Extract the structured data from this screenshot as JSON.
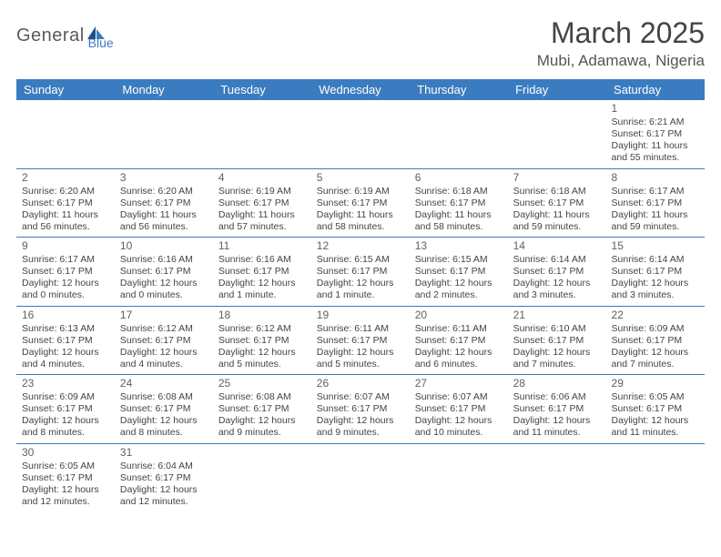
{
  "logo": {
    "text_general": "General",
    "text_blue": "Blue"
  },
  "title": {
    "month_year": "March 2025",
    "location": "Mubi, Adamawa, Nigeria"
  },
  "colors": {
    "header_bg": "#3b7bbf",
    "header_text": "#ffffff",
    "cell_border": "#3b7bbf",
    "empty_bg": "#f0f0f0",
    "body_text": "#444444",
    "title_text": "#444444",
    "location_text": "#555555",
    "logo_gray": "#5a5a5a",
    "logo_blue": "#3b7bbf"
  },
  "day_headers": [
    "Sunday",
    "Monday",
    "Tuesday",
    "Wednesday",
    "Thursday",
    "Friday",
    "Saturday"
  ],
  "weeks": [
    [
      null,
      null,
      null,
      null,
      null,
      null,
      {
        "d": "1",
        "sr": "Sunrise: 6:21 AM",
        "ss": "Sunset: 6:17 PM",
        "dl1": "Daylight: 11 hours",
        "dl2": "and 55 minutes."
      }
    ],
    [
      {
        "d": "2",
        "sr": "Sunrise: 6:20 AM",
        "ss": "Sunset: 6:17 PM",
        "dl1": "Daylight: 11 hours",
        "dl2": "and 56 minutes."
      },
      {
        "d": "3",
        "sr": "Sunrise: 6:20 AM",
        "ss": "Sunset: 6:17 PM",
        "dl1": "Daylight: 11 hours",
        "dl2": "and 56 minutes."
      },
      {
        "d": "4",
        "sr": "Sunrise: 6:19 AM",
        "ss": "Sunset: 6:17 PM",
        "dl1": "Daylight: 11 hours",
        "dl2": "and 57 minutes."
      },
      {
        "d": "5",
        "sr": "Sunrise: 6:19 AM",
        "ss": "Sunset: 6:17 PM",
        "dl1": "Daylight: 11 hours",
        "dl2": "and 58 minutes."
      },
      {
        "d": "6",
        "sr": "Sunrise: 6:18 AM",
        "ss": "Sunset: 6:17 PM",
        "dl1": "Daylight: 11 hours",
        "dl2": "and 58 minutes."
      },
      {
        "d": "7",
        "sr": "Sunrise: 6:18 AM",
        "ss": "Sunset: 6:17 PM",
        "dl1": "Daylight: 11 hours",
        "dl2": "and 59 minutes."
      },
      {
        "d": "8",
        "sr": "Sunrise: 6:17 AM",
        "ss": "Sunset: 6:17 PM",
        "dl1": "Daylight: 11 hours",
        "dl2": "and 59 minutes."
      }
    ],
    [
      {
        "d": "9",
        "sr": "Sunrise: 6:17 AM",
        "ss": "Sunset: 6:17 PM",
        "dl1": "Daylight: 12 hours",
        "dl2": "and 0 minutes."
      },
      {
        "d": "10",
        "sr": "Sunrise: 6:16 AM",
        "ss": "Sunset: 6:17 PM",
        "dl1": "Daylight: 12 hours",
        "dl2": "and 0 minutes."
      },
      {
        "d": "11",
        "sr": "Sunrise: 6:16 AM",
        "ss": "Sunset: 6:17 PM",
        "dl1": "Daylight: 12 hours",
        "dl2": "and 1 minute."
      },
      {
        "d": "12",
        "sr": "Sunrise: 6:15 AM",
        "ss": "Sunset: 6:17 PM",
        "dl1": "Daylight: 12 hours",
        "dl2": "and 1 minute."
      },
      {
        "d": "13",
        "sr": "Sunrise: 6:15 AM",
        "ss": "Sunset: 6:17 PM",
        "dl1": "Daylight: 12 hours",
        "dl2": "and 2 minutes."
      },
      {
        "d": "14",
        "sr": "Sunrise: 6:14 AM",
        "ss": "Sunset: 6:17 PM",
        "dl1": "Daylight: 12 hours",
        "dl2": "and 3 minutes."
      },
      {
        "d": "15",
        "sr": "Sunrise: 6:14 AM",
        "ss": "Sunset: 6:17 PM",
        "dl1": "Daylight: 12 hours",
        "dl2": "and 3 minutes."
      }
    ],
    [
      {
        "d": "16",
        "sr": "Sunrise: 6:13 AM",
        "ss": "Sunset: 6:17 PM",
        "dl1": "Daylight: 12 hours",
        "dl2": "and 4 minutes."
      },
      {
        "d": "17",
        "sr": "Sunrise: 6:12 AM",
        "ss": "Sunset: 6:17 PM",
        "dl1": "Daylight: 12 hours",
        "dl2": "and 4 minutes."
      },
      {
        "d": "18",
        "sr": "Sunrise: 6:12 AM",
        "ss": "Sunset: 6:17 PM",
        "dl1": "Daylight: 12 hours",
        "dl2": "and 5 minutes."
      },
      {
        "d": "19",
        "sr": "Sunrise: 6:11 AM",
        "ss": "Sunset: 6:17 PM",
        "dl1": "Daylight: 12 hours",
        "dl2": "and 5 minutes."
      },
      {
        "d": "20",
        "sr": "Sunrise: 6:11 AM",
        "ss": "Sunset: 6:17 PM",
        "dl1": "Daylight: 12 hours",
        "dl2": "and 6 minutes."
      },
      {
        "d": "21",
        "sr": "Sunrise: 6:10 AM",
        "ss": "Sunset: 6:17 PM",
        "dl1": "Daylight: 12 hours",
        "dl2": "and 7 minutes."
      },
      {
        "d": "22",
        "sr": "Sunrise: 6:09 AM",
        "ss": "Sunset: 6:17 PM",
        "dl1": "Daylight: 12 hours",
        "dl2": "and 7 minutes."
      }
    ],
    [
      {
        "d": "23",
        "sr": "Sunrise: 6:09 AM",
        "ss": "Sunset: 6:17 PM",
        "dl1": "Daylight: 12 hours",
        "dl2": "and 8 minutes."
      },
      {
        "d": "24",
        "sr": "Sunrise: 6:08 AM",
        "ss": "Sunset: 6:17 PM",
        "dl1": "Daylight: 12 hours",
        "dl2": "and 8 minutes."
      },
      {
        "d": "25",
        "sr": "Sunrise: 6:08 AM",
        "ss": "Sunset: 6:17 PM",
        "dl1": "Daylight: 12 hours",
        "dl2": "and 9 minutes."
      },
      {
        "d": "26",
        "sr": "Sunrise: 6:07 AM",
        "ss": "Sunset: 6:17 PM",
        "dl1": "Daylight: 12 hours",
        "dl2": "and 9 minutes."
      },
      {
        "d": "27",
        "sr": "Sunrise: 6:07 AM",
        "ss": "Sunset: 6:17 PM",
        "dl1": "Daylight: 12 hours",
        "dl2": "and 10 minutes."
      },
      {
        "d": "28",
        "sr": "Sunrise: 6:06 AM",
        "ss": "Sunset: 6:17 PM",
        "dl1": "Daylight: 12 hours",
        "dl2": "and 11 minutes."
      },
      {
        "d": "29",
        "sr": "Sunrise: 6:05 AM",
        "ss": "Sunset: 6:17 PM",
        "dl1": "Daylight: 12 hours",
        "dl2": "and 11 minutes."
      }
    ],
    [
      {
        "d": "30",
        "sr": "Sunrise: 6:05 AM",
        "ss": "Sunset: 6:17 PM",
        "dl1": "Daylight: 12 hours",
        "dl2": "and 12 minutes."
      },
      {
        "d": "31",
        "sr": "Sunrise: 6:04 AM",
        "ss": "Sunset: 6:17 PM",
        "dl1": "Daylight: 12 hours",
        "dl2": "and 12 minutes."
      },
      null,
      null,
      null,
      null,
      null
    ]
  ]
}
